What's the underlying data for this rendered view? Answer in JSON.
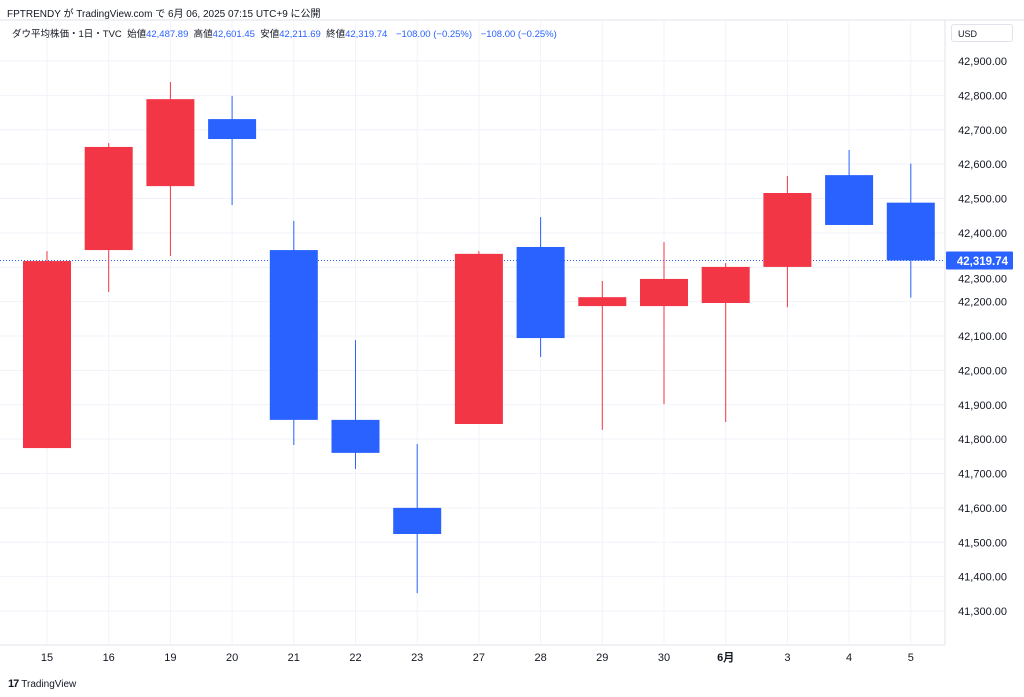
{
  "header": {
    "published": "FPTRENDY が TradingView.com で 6月 06, 2025 07:15 UTC+9 に公開"
  },
  "legend": {
    "symbol": "ダウ平均株価・1日・TVC",
    "open_label": "始値",
    "open": "42,487.89",
    "high_label": "高値",
    "high": "42,601.45",
    "low_label": "安値",
    "low": "42,211.69",
    "close_label": "終値",
    "close": "42,319.74",
    "change1": "−108.00 (−0.25%)",
    "change2": "−108.00 (−0.25%)"
  },
  "currency": "USD",
  "brand": "TradingView",
  "colors": {
    "up": "#f23645",
    "down": "#2962ff",
    "grid": "#f0f3fa",
    "last_price": "#2962ff"
  },
  "chart_data": {
    "type": "candlestick",
    "ylim": [
      41150,
      43000
    ],
    "y_ticks": [
      "42,900.00",
      "42,800.00",
      "42,700.00",
      "42,600.00",
      "42,500.00",
      "42,400.00",
      "42,300.00",
      "42,200.00",
      "42,100.00",
      "42,000.00",
      "41,900.00",
      "41,800.00",
      "41,700.00",
      "41,600.00",
      "41,500.00",
      "41,400.00",
      "41,300.00"
    ],
    "y_tick_values": [
      42900,
      42800,
      42700,
      42600,
      42500,
      42400,
      42300,
      42200,
      42100,
      42000,
      41900,
      41800,
      41700,
      41600,
      41500,
      41400,
      41300
    ],
    "last_price": 42319.74,
    "last_price_label": "42,319.74",
    "grid": true,
    "candles": [
      {
        "x": "15",
        "open": 41774,
        "high": 42347,
        "low": 41774,
        "close": 42318
      },
      {
        "x": "16",
        "open": 42350,
        "high": 42661,
        "low": 42228,
        "close": 42650
      },
      {
        "x": "19",
        "open": 42536,
        "high": 42839,
        "low": 42333,
        "close": 42789
      },
      {
        "x": "20",
        "open": 42731,
        "high": 42798,
        "low": 42481,
        "close": 42673
      },
      {
        "x": "21",
        "open": 42350,
        "high": 42435,
        "low": 41783,
        "close": 41856
      },
      {
        "x": "22",
        "open": 41856,
        "high": 42088,
        "low": 41713,
        "close": 41760
      },
      {
        "x": "23",
        "open": 41600,
        "high": 41786,
        "low": 41352,
        "close": 41524
      },
      {
        "x": "27",
        "open": 41844,
        "high": 42347,
        "low": 41844,
        "close": 42339
      },
      {
        "x": "28",
        "open": 42359,
        "high": 42446,
        "low": 42039,
        "close": 42094
      },
      {
        "x": "29",
        "open": 42187,
        "high": 42260,
        "low": 41827,
        "close": 42213
      },
      {
        "x": "30",
        "open": 42187,
        "high": 42373,
        "low": 41902,
        "close": 42266
      },
      {
        "x": "6月",
        "open": 42196,
        "high": 42312,
        "low": 41850,
        "close": 42301,
        "bold": true
      },
      {
        "x": "3",
        "open": 42301,
        "high": 42565,
        "low": 42184,
        "close": 42516
      },
      {
        "x": "4",
        "open": 42568,
        "high": 42641,
        "low": 42423,
        "close": 42423
      },
      {
        "x": "5",
        "open": 42487.89,
        "high": 42601.45,
        "low": 42211.69,
        "close": 42319.74
      }
    ]
  }
}
